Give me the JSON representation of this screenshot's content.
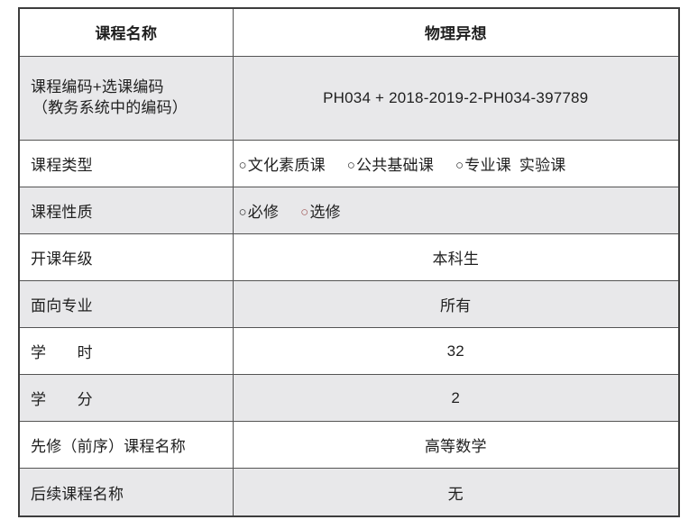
{
  "colors": {
    "row_shade": "#e8e8ea",
    "outer_border": "#3d3d3d",
    "inner_border": "#545454",
    "text": "#1f1f1f",
    "elective_marker_red": "#a05858",
    "default_marker": "#2a2a2a"
  },
  "table": {
    "rows": [
      {
        "label": "课程名称",
        "value": "物理异想"
      },
      {
        "label_line1": "课程编码+选课编码",
        "label_line2": "（教务系统中的编码）",
        "value": "PH034 + 2018-2019-2-PH034-397789"
      },
      {
        "label": "课程类型",
        "options": [
          {
            "marker": "○",
            "text": "文化素质课",
            "marker_color": "#2a2a2a"
          },
          {
            "marker": "○",
            "text": "公共基础课",
            "marker_color": "#2a2a2a"
          },
          {
            "marker": "○",
            "text": "专业课",
            "marker_color": "#2a2a2a"
          },
          {
            "marker": "",
            "text": "实验课",
            "marker_color": "#2a2a2a"
          }
        ]
      },
      {
        "label": "课程性质",
        "options": [
          {
            "marker": "○",
            "text": "必修",
            "marker_color": "#2a2a2a"
          },
          {
            "marker": "○",
            "text": "选修",
            "marker_color": "#a05858"
          }
        ]
      },
      {
        "label": "开课年级",
        "value": "本科生"
      },
      {
        "label": "面向专业",
        "value": "所有"
      },
      {
        "label": "学　　时",
        "value": "32"
      },
      {
        "label": "学　　分",
        "value": "2"
      },
      {
        "label": "先修（前序）课程名称",
        "value": "高等数学"
      },
      {
        "label": "后续课程名称",
        "value": "无"
      }
    ]
  }
}
